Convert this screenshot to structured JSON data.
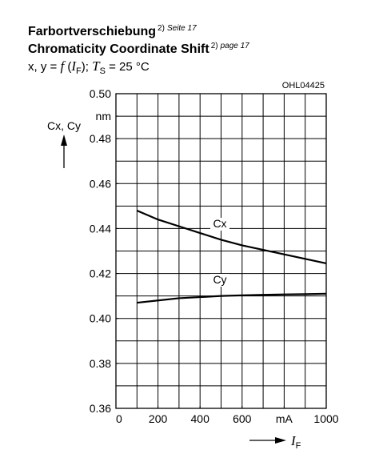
{
  "chart_data": {
    "type": "line",
    "title": "Farbortverschiebung",
    "title_note": [
      "2)",
      "Seite 17"
    ],
    "title2": "Chromaticity Coordinate Shift",
    "title2_note": [
      "2)",
      "page 17"
    ],
    "subtitle": [
      "x, y = ",
      "f",
      " (",
      "I",
      "F",
      "); ",
      "T",
      "S",
      " = 25 °C"
    ],
    "code": "OHL04425",
    "y_label": "Cx, Cy",
    "x_label": [
      "I",
      "F"
    ],
    "x": [
      100,
      200,
      300,
      400,
      500,
      600,
      700,
      800,
      900,
      1000
    ],
    "series": [
      {
        "name": "Cx",
        "color": "#000000",
        "values": [
          0.448,
          0.444,
          0.441,
          0.438,
          0.435,
          0.4325,
          0.4305,
          0.4285,
          0.4265,
          0.4245
        ]
      },
      {
        "name": "Cy",
        "color": "#000000",
        "values": [
          0.407,
          0.408,
          0.409,
          0.4095,
          0.41,
          0.4103,
          0.4105,
          0.4107,
          0.4108,
          0.411
        ]
      }
    ],
    "xlim": [
      0,
      1000
    ],
    "ylim": [
      0.36,
      0.5
    ],
    "xticks": [
      0,
      200,
      400,
      600,
      {
        "value": 800,
        "label": "mA"
      },
      1000
    ],
    "yticks": [
      0.36,
      0.38,
      0.4,
      0.42,
      0.44,
      0.46,
      0.48,
      {
        "value": 0.49,
        "label": "nm"
      },
      {
        "value": 0.5,
        "label": "0.50"
      }
    ],
    "xgrid_step": 100,
    "ygrid_step": 0.01,
    "grid": true
  }
}
